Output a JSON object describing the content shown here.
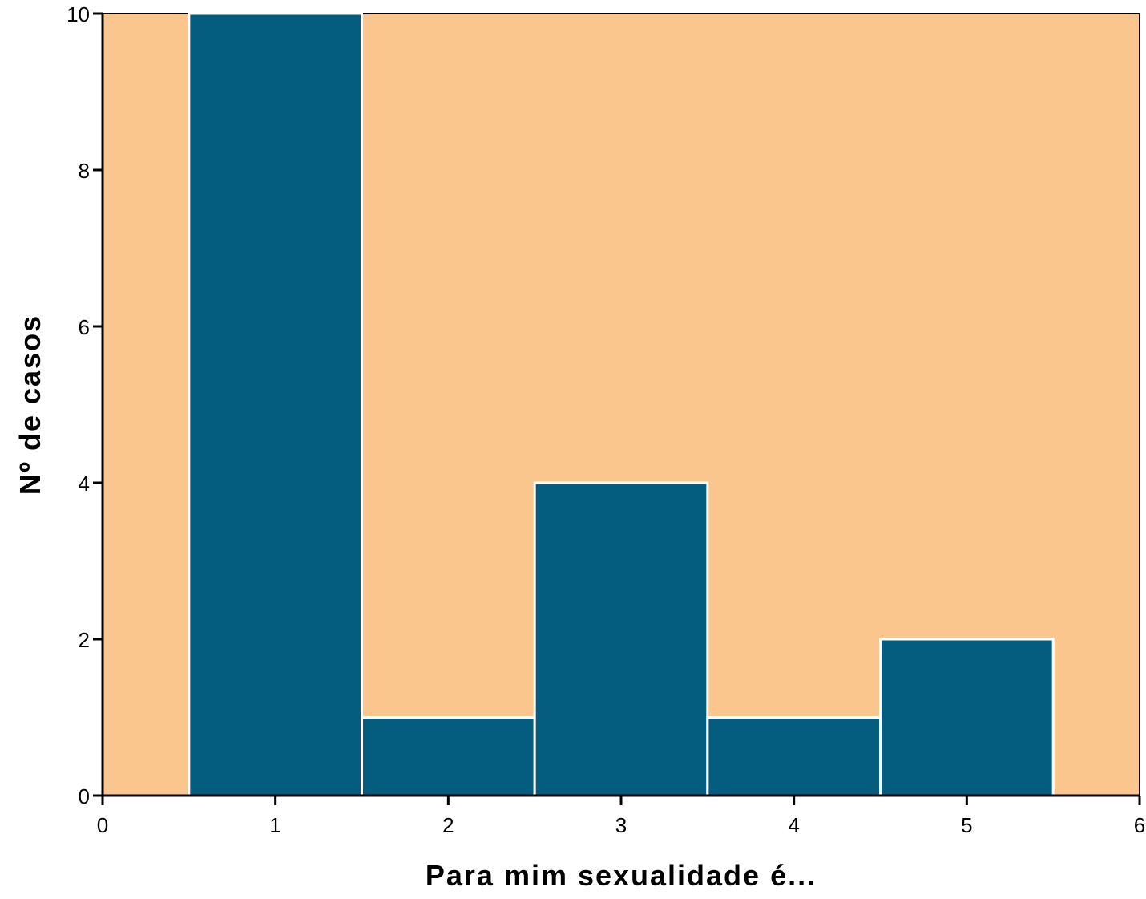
{
  "chart_data": {
    "type": "bar",
    "subtype": "histogram",
    "bins": [
      {
        "x_start": 0.5,
        "x_end": 1.5,
        "value": 10
      },
      {
        "x_start": 1.5,
        "x_end": 2.5,
        "value": 1
      },
      {
        "x_start": 2.5,
        "x_end": 3.5,
        "value": 4
      },
      {
        "x_start": 3.5,
        "x_end": 4.5,
        "value": 1
      },
      {
        "x_start": 4.5,
        "x_end": 5.5,
        "value": 2
      }
    ],
    "xlabel": "Para mim sexualidade é...",
    "ylabel": "Nº de casos",
    "xlim": [
      0,
      6
    ],
    "ylim": [
      0,
      10
    ],
    "xticks": [
      0,
      1,
      2,
      3,
      4,
      5,
      6
    ],
    "yticks": [
      0,
      2,
      4,
      6,
      8,
      10
    ],
    "grid": false,
    "colors": {
      "plot_background": "#FBC68E",
      "bar_fill": "#045C7E",
      "bar_edge": "#FFFFFF",
      "axis": "#000000"
    }
  }
}
